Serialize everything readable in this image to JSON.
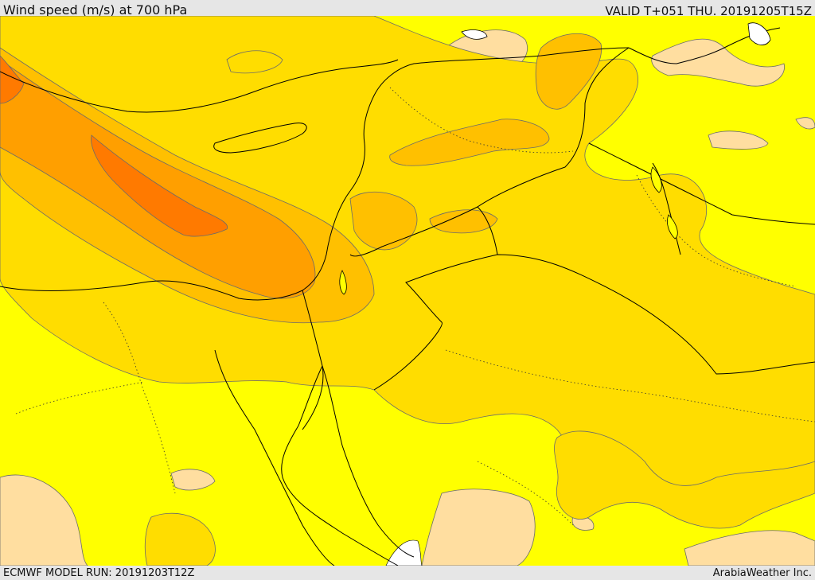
{
  "header": {
    "title": "Wind speed (m/s) at 700 hPa",
    "valid": "VALID T+051 THU. 20191205T15Z"
  },
  "footer": {
    "model_run": "ECMWF MODEL RUN: 20191203T12Z",
    "credit": "ArabiaWeather Inc."
  },
  "map": {
    "colors": {
      "level_lowest": "#ffdea0",
      "level_1": "#ffff00",
      "level_2": "#ffdd00",
      "level_3": "#ffc000",
      "level_4": "#ff9f00",
      "level_5": "#ff7a00",
      "sea_ice_white": "#ffffff",
      "contour_line": "#6b6b6b",
      "coastline": "#000000"
    }
  }
}
